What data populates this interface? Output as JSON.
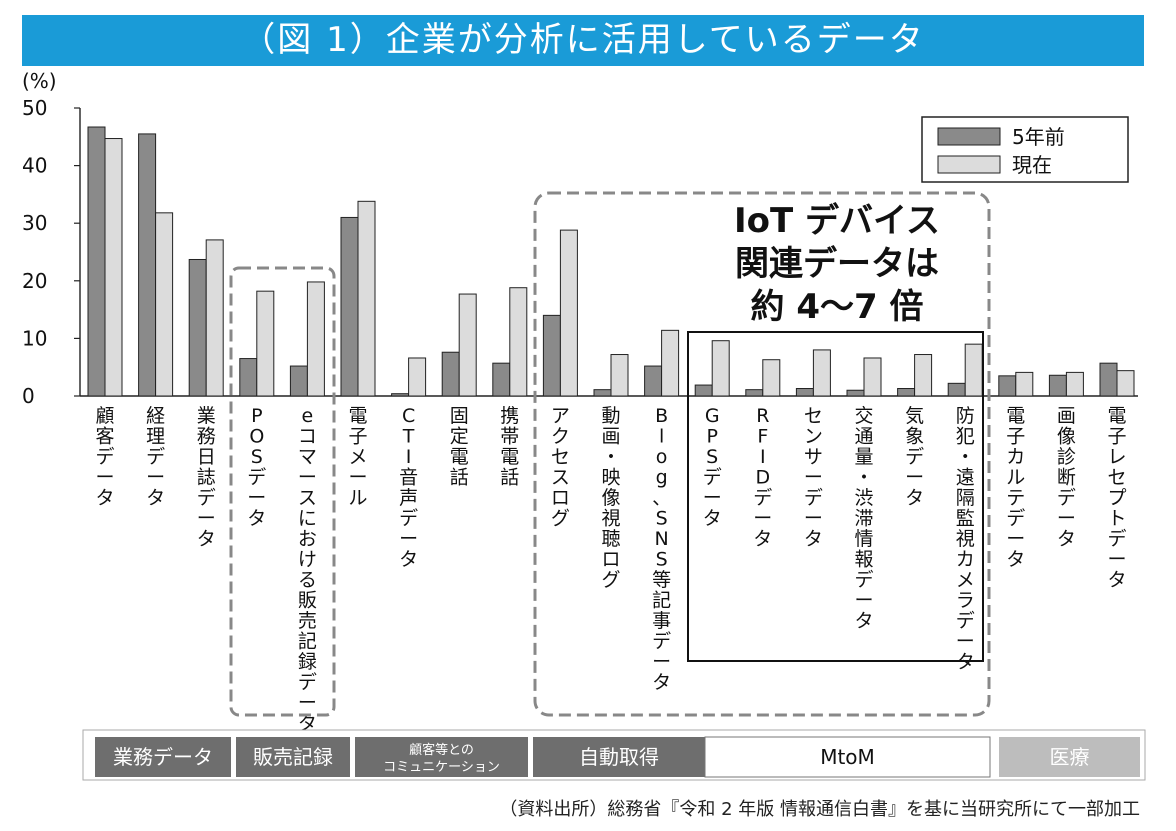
{
  "title": "（図 1）企業が分析に活用しているデータ",
  "unit_label": "(%)",
  "iot_callout": [
    "IoT デバイス",
    "関連データは",
    "約 4～7 倍"
  ],
  "source": "（資料出所）総務省『令和 2 年版 情報通信白書』を基に当研究所にて一部加工",
  "categories_bar": [
    {
      "label": "業務データ",
      "color": "#6e6e6e",
      "text_color": "#ffffff"
    },
    {
      "label": "販売記録",
      "color": "#6e6e6e",
      "text_color": "#ffffff"
    },
    {
      "label": "顧客等との\nコミュニケーション",
      "color": "#6e6e6e",
      "text_color": "#ffffff"
    },
    {
      "label": "自動取得",
      "color": "#6e6e6e",
      "text_color": "#ffffff"
    },
    {
      "label": "MtoM",
      "color": "#ffffff",
      "text_color": "#111111"
    },
    {
      "label": "医療",
      "color": "#bdbdbd",
      "text_color": "#ffffff"
    }
  ],
  "colors": {
    "title_bg": "#1a9bd7",
    "series_past": "#8a8a8a",
    "series_now": "#dcdcdc"
  },
  "chart_data": {
    "type": "bar",
    "title": "（図 1）企業が分析に活用しているデータ",
    "ylabel": "(%)",
    "ylim": [
      0,
      50
    ],
    "yticks": [
      0,
      10,
      20,
      30,
      40,
      50
    ],
    "legend_position": "top-right",
    "categories": [
      "顧客データ",
      "経理データ",
      "業務日誌データ",
      "POSデータ",
      "eコマースにおける販売記録データ",
      "電子メール",
      "CTI音声データ",
      "固定電話",
      "携帯電話",
      "アクセスログ",
      "動画・映像視聴ログ",
      "Blog、SNS等記事データ",
      "GPSデータ",
      "RFIDデータ",
      "センサーデータ",
      "交通量・渋滞情報データ",
      "気象データ",
      "防犯・遠隔監視カメラデータ",
      "電子カルテデータ",
      "画像診断データ",
      "電子レセプトデータ"
    ],
    "series": [
      {
        "name": "5年前",
        "values": [
          46.7,
          45.5,
          23.7,
          6.5,
          5.2,
          31.0,
          0.4,
          7.6,
          5.7,
          14.0,
          1.1,
          5.2,
          1.9,
          1.1,
          1.3,
          1.0,
          1.3,
          2.2,
          3.5,
          3.6,
          5.7
        ]
      },
      {
        "name": "現在",
        "values": [
          44.7,
          31.8,
          27.1,
          18.2,
          19.8,
          33.8,
          6.6,
          17.7,
          18.8,
          28.8,
          7.2,
          11.4,
          9.6,
          6.3,
          8.0,
          6.6,
          7.2,
          9.0,
          4.1,
          4.1,
          4.4
        ]
      }
    ]
  }
}
